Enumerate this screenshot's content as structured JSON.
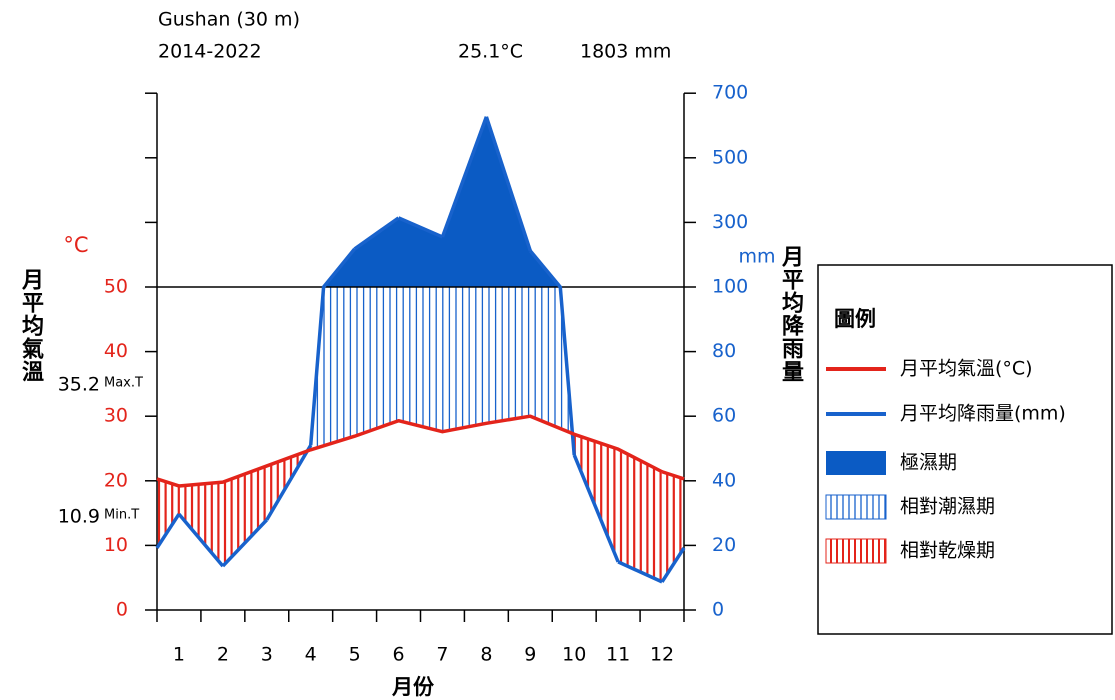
{
  "chart_data": {
    "type": "climate",
    "station": "Gushan (30 m)",
    "period": "2014-2022",
    "mean_temperature": {
      "value": 25.1,
      "label": "25.1°C"
    },
    "annual_precipitation": {
      "value": 1803,
      "label": "1803 mm"
    },
    "max_t": 35.2,
    "max_t_label": "Max.T",
    "min_t": 10.9,
    "min_t_label": "Min.T",
    "xlabel": "月份",
    "ylabel_unit": "°C",
    "ylabel": "月平均氣溫",
    "y2label_unit": "mm",
    "y2label": "月平均降雨量",
    "categories": [
      "1",
      "2",
      "3",
      "4",
      "5",
      "6",
      "7",
      "8",
      "9",
      "10",
      "11",
      "12"
    ],
    "ylim": [
      0,
      80
    ],
    "yticks": [
      0,
      10,
      20,
      30,
      40,
      50
    ],
    "y2lim": [
      0,
      700
    ],
    "y2ticks": [
      0,
      20,
      40,
      60,
      80,
      100,
      300,
      500,
      700
    ],
    "series": [
      {
        "name": "月平均氣溫(°C)",
        "color": "#e3241b",
        "axis": "y",
        "values": [
          19.2,
          19.8,
          22.3,
          24.8,
          26.9,
          29.3,
          27.6,
          28.9,
          30.0,
          27.2,
          24.9,
          21.4
        ]
      },
      {
        "name": "月平均降雨量(mm)",
        "color": "#1862cc",
        "axis": "y2",
        "values": [
          29.7,
          13.6,
          27.9,
          51,
          218,
          314,
          255,
          627,
          212,
          48,
          14.9,
          8.7
        ]
      }
    ],
    "legend": {
      "title": "圖例",
      "items": [
        "極濕期",
        "相對潮濕期",
        "相對乾燥期"
      ],
      "humid_color": "#0b5bc4"
    }
  }
}
